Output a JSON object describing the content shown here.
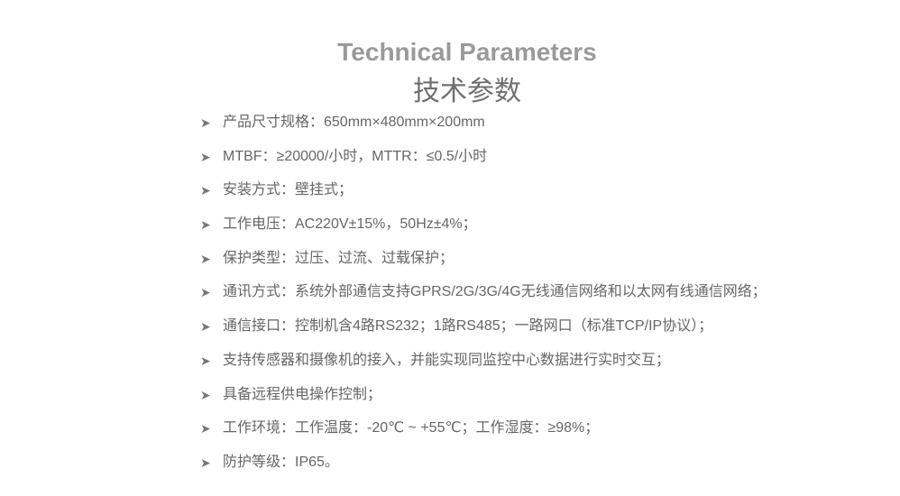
{
  "title_en": "Technical Parameters",
  "title_zh": "技术参数",
  "bullet_icon": "arrowhead-right-icon",
  "items": [
    "产品尺寸规格：650mm×480mm×200mm",
    "MTBF：≥20000/小时，MTTR：≤0.5/小时",
    "安装方式：壁挂式；",
    "工作电压：AC220V±15%，50Hz±4%；",
    "保护类型：过压、过流、过载保护；",
    "通讯方式：系统外部通信支持GPRS/2G/3G/4G无线通信网络和以太网有线通信网络；",
    "通信接口：控制机含4路RS232；1路RS485；一路网口（标准TCP/IP协议）；",
    "支持传感器和摄像机的接入，并能实现同监控中心数据进行实时交互；",
    "具备远程供电操作控制；",
    "工作环境：工作温度：-20℃ ~ +55℃；工作湿度：≥98%；",
    "防护等级：IP65。"
  ]
}
